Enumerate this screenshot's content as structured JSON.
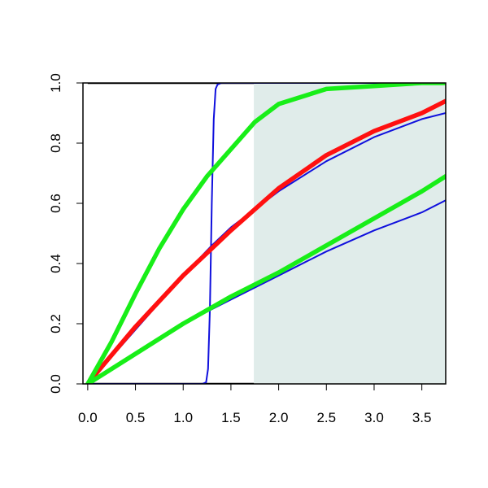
{
  "chart_data": {
    "type": "line",
    "title": "",
    "xlabel": "",
    "ylabel": "",
    "xlim": [
      -0.05,
      3.75
    ],
    "ylim": [
      0,
      1
    ],
    "x_ticks": [
      0,
      0.5,
      1,
      1.5,
      2,
      2.5,
      3,
      3.5
    ],
    "x_tick_labels": [
      "0.0",
      "0.5",
      "1.0",
      "1.5",
      "2.0",
      "2.5",
      "3.0",
      "3.5"
    ],
    "y_ticks": [
      0,
      0.2,
      0.4,
      0.6,
      0.8,
      1
    ],
    "y_tick_labels": [
      "0.0",
      "0.2",
      "0.4",
      "0.6",
      "0.8",
      "1.0"
    ],
    "grid": false,
    "legend": "none",
    "shaded_region": {
      "x_from": 1.74,
      "x_to": 3.75,
      "color": "#e0ecea"
    },
    "reference_lines": [
      {
        "y": 0,
        "x_from": 0,
        "x_to": 1.74,
        "color": "#000000"
      },
      {
        "y": 1,
        "x_from": 0,
        "x_to": 1.74,
        "color": "#000000"
      }
    ],
    "series": [
      {
        "color": "#1010dd",
        "weight": "thin",
        "x": [
          0,
          1.2,
          1.24,
          1.26,
          1.28,
          1.3,
          1.32,
          1.34,
          1.36,
          1.4,
          3.75
        ],
        "y": [
          0,
          0,
          0.005,
          0.05,
          0.25,
          0.6,
          0.88,
          0.98,
          0.995,
          1,
          1
        ]
      },
      {
        "color": "#1010dd",
        "weight": "thin",
        "x": [
          0,
          0.5,
          1.0,
          1.3,
          1.5,
          2.0,
          2.5,
          3.0,
          3.5,
          3.75
        ],
        "y": [
          0,
          0.18,
          0.36,
          0.46,
          0.52,
          0.64,
          0.74,
          0.82,
          0.88,
          0.9
        ]
      },
      {
        "color": "#1010dd",
        "weight": "thin",
        "x": [
          0,
          0.5,
          1.0,
          1.5,
          2.0,
          2.5,
          3.0,
          3.5,
          3.75
        ],
        "y": [
          0,
          0.1,
          0.2,
          0.28,
          0.36,
          0.44,
          0.51,
          0.57,
          0.61
        ]
      },
      {
        "color": "#ff1010",
        "weight": "thick",
        "x": [
          0.05,
          0.5,
          1.0,
          1.5,
          2.0,
          2.5,
          3.0,
          3.5,
          3.75
        ],
        "y": [
          0.02,
          0.19,
          0.36,
          0.51,
          0.65,
          0.76,
          0.84,
          0.9,
          0.94
        ]
      },
      {
        "color": "#18ee18",
        "weight": "thick",
        "x": [
          0,
          0.25,
          0.5,
          0.75,
          1.0,
          1.25,
          1.5,
          1.75,
          2.0,
          2.5,
          3.0,
          3.5,
          3.75
        ],
        "y": [
          0,
          0.14,
          0.3,
          0.45,
          0.58,
          0.69,
          0.78,
          0.87,
          0.93,
          0.98,
          0.99,
          1,
          1
        ]
      },
      {
        "color": "#18ee18",
        "weight": "thick",
        "x": [
          0,
          0.5,
          1.0,
          1.5,
          2.0,
          2.5,
          3.0,
          3.5,
          3.75
        ],
        "y": [
          0,
          0.1,
          0.2,
          0.29,
          0.37,
          0.46,
          0.55,
          0.64,
          0.69
        ]
      }
    ]
  }
}
